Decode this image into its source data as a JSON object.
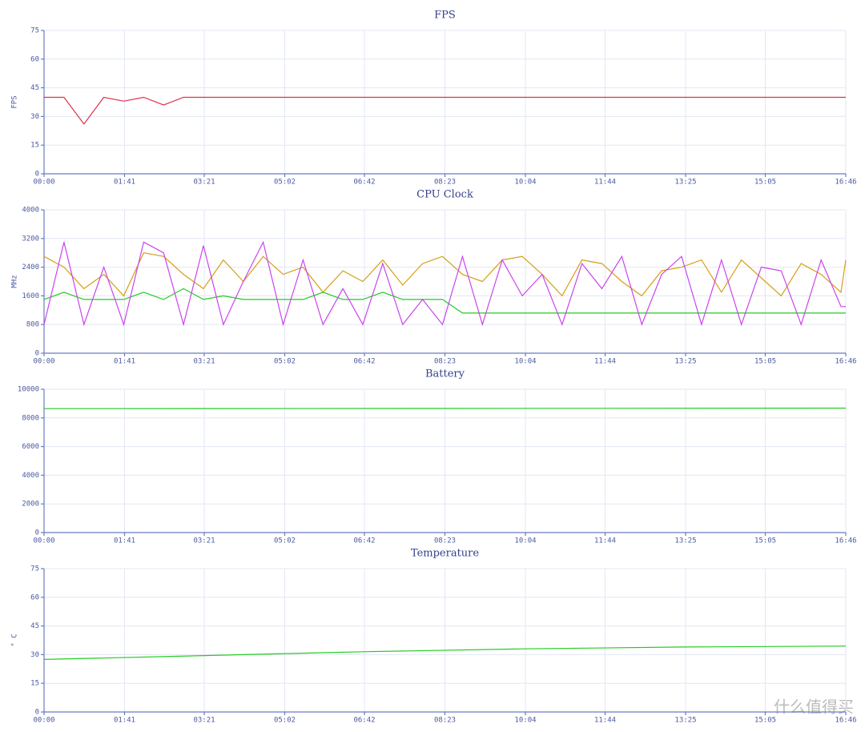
{
  "chart_data": [
    {
      "type": "line",
      "title": "FPS",
      "y_label": "FPS",
      "x": [
        0,
        25,
        50,
        75,
        100,
        125,
        150,
        175,
        200,
        225,
        250,
        275,
        300,
        325,
        350,
        375,
        400,
        425,
        450,
        475,
        500,
        525,
        550,
        575,
        600,
        625,
        650,
        675,
        700,
        725,
        750,
        775,
        800,
        825,
        850,
        875,
        900,
        925,
        950,
        975,
        1000,
        1006
      ],
      "xlim": [
        0,
        1006
      ],
      "xticks": [
        {
          "value": 0,
          "label": "00:00"
        },
        {
          "value": 101,
          "label": "01:41"
        },
        {
          "value": 201,
          "label": "03:21"
        },
        {
          "value": 302,
          "label": "05:02"
        },
        {
          "value": 402,
          "label": "06:42"
        },
        {
          "value": 503,
          "label": "08:23"
        },
        {
          "value": 604,
          "label": "10:04"
        },
        {
          "value": 704,
          "label": "11:44"
        },
        {
          "value": 805,
          "label": "13:25"
        },
        {
          "value": 905,
          "label": "15:05"
        },
        {
          "value": 1006,
          "label": "16:46"
        }
      ],
      "ylim": [
        0,
        75
      ],
      "yticks": [
        0,
        15,
        30,
        45,
        60,
        75
      ],
      "grid": true,
      "series": [
        {
          "color": "#e0304a",
          "values": [
            40,
            40,
            26,
            40,
            38,
            40,
            36,
            40,
            40,
            40,
            40,
            40,
            40,
            40,
            40,
            40,
            40,
            40,
            40,
            40,
            40,
            40,
            40,
            40,
            40,
            40,
            40,
            40,
            40,
            40,
            40,
            40,
            40,
            40,
            40,
            40,
            40,
            40,
            40,
            40,
            40,
            40
          ]
        }
      ]
    },
    {
      "type": "line",
      "title": "CPU Clock",
      "y_label": "MHz",
      "x": [
        0,
        25,
        50,
        75,
        100,
        125,
        150,
        175,
        200,
        225,
        250,
        275,
        300,
        325,
        350,
        375,
        400,
        425,
        450,
        475,
        500,
        525,
        550,
        575,
        600,
        625,
        650,
        675,
        700,
        725,
        750,
        775,
        800,
        825,
        850,
        875,
        900,
        925,
        950,
        975,
        1000,
        1006
      ],
      "xlim": [
        0,
        1006
      ],
      "xticks": [
        {
          "value": 0,
          "label": "00:00"
        },
        {
          "value": 101,
          "label": "01:41"
        },
        {
          "value": 201,
          "label": "03:21"
        },
        {
          "value": 302,
          "label": "05:02"
        },
        {
          "value": 402,
          "label": "06:42"
        },
        {
          "value": 503,
          "label": "08:23"
        },
        {
          "value": 604,
          "label": "10:04"
        },
        {
          "value": 704,
          "label": "11:44"
        },
        {
          "value": 805,
          "label": "13:25"
        },
        {
          "value": 905,
          "label": "15:05"
        },
        {
          "value": 1006,
          "label": "16:46"
        }
      ],
      "ylim": [
        0,
        4000
      ],
      "yticks": [
        0,
        800,
        1600,
        2400,
        3200,
        4000
      ],
      "grid": true,
      "series": [
        {
          "color": "#d4a017",
          "values": [
            2700,
            2400,
            1800,
            2200,
            1600,
            2800,
            2700,
            2200,
            1800,
            2600,
            2000,
            2700,
            2200,
            2400,
            1700,
            2300,
            2000,
            2600,
            1900,
            2500,
            2700,
            2200,
            2000,
            2600,
            2700,
            2200,
            1600,
            2600,
            2500,
            2000,
            1600,
            2300,
            2400,
            2600,
            1700,
            2600,
            2100,
            1600,
            2500,
            2200,
            1700,
            2600
          ]
        },
        {
          "color": "#22cc22",
          "values": [
            1500,
            1700,
            1500,
            1500,
            1500,
            1700,
            1500,
            1800,
            1500,
            1600,
            1500,
            1500,
            1500,
            1500,
            1700,
            1500,
            1500,
            1700,
            1500,
            1500,
            1500,
            1120,
            1120,
            1120,
            1120,
            1120,
            1120,
            1120,
            1120,
            1120,
            1120,
            1120,
            1120,
            1120,
            1120,
            1120,
            1120,
            1120,
            1120,
            1120,
            1120,
            1120
          ]
        },
        {
          "color": "#cc44ee",
          "values": [
            800,
            3100,
            800,
            2400,
            800,
            3100,
            2800,
            800,
            3000,
            800,
            2000,
            3100,
            800,
            2600,
            800,
            1800,
            800,
            2500,
            800,
            1500,
            800,
            2700,
            800,
            2600,
            1600,
            2200,
            800,
            2500,
            1800,
            2700,
            800,
            2200,
            2700,
            800,
            2600,
            800,
            2400,
            2300,
            800,
            2600,
            1300,
            1300
          ]
        }
      ]
    },
    {
      "type": "line",
      "title": "Battery",
      "x": [
        0,
        500,
        1006
      ],
      "xlim": [
        0,
        1006
      ],
      "xticks": [
        {
          "value": 0,
          "label": "00:00"
        },
        {
          "value": 101,
          "label": "01:41"
        },
        {
          "value": 201,
          "label": "03:21"
        },
        {
          "value": 302,
          "label": "05:02"
        },
        {
          "value": 402,
          "label": "06:42"
        },
        {
          "value": 503,
          "label": "08:23"
        },
        {
          "value": 604,
          "label": "10:04"
        },
        {
          "value": 704,
          "label": "11:44"
        },
        {
          "value": 805,
          "label": "13:25"
        },
        {
          "value": 905,
          "label": "15:05"
        },
        {
          "value": 1006,
          "label": "16:46"
        }
      ],
      "ylim": [
        0,
        10000
      ],
      "yticks": [
        0,
        2000,
        4000,
        6000,
        8000,
        10000
      ],
      "grid": true,
      "series": [
        {
          "color": "#22cc22",
          "values": [
            8650,
            8660,
            8680
          ]
        }
      ]
    },
    {
      "type": "line",
      "title": "Temperature",
      "y_label": "°  C",
      "x": [
        0,
        200,
        400,
        600,
        800,
        1006
      ],
      "xlim": [
        0,
        1006
      ],
      "xticks": [
        {
          "value": 0,
          "label": "00:00"
        },
        {
          "value": 101,
          "label": "01:41"
        },
        {
          "value": 201,
          "label": "03:21"
        },
        {
          "value": 302,
          "label": "05:02"
        },
        {
          "value": 402,
          "label": "06:42"
        },
        {
          "value": 503,
          "label": "08:23"
        },
        {
          "value": 604,
          "label": "10:04"
        },
        {
          "value": 704,
          "label": "11:44"
        },
        {
          "value": 805,
          "label": "13:25"
        },
        {
          "value": 905,
          "label": "15:05"
        },
        {
          "value": 1006,
          "label": "16:46"
        }
      ],
      "ylim": [
        0,
        75
      ],
      "yticks": [
        0,
        15,
        30,
        45,
        60,
        75
      ],
      "grid": true,
      "series": [
        {
          "color": "#22cc22",
          "values": [
            27.5,
            29.5,
            31.5,
            33,
            34,
            34.5
          ]
        }
      ]
    }
  ],
  "watermark": "什么值得买"
}
